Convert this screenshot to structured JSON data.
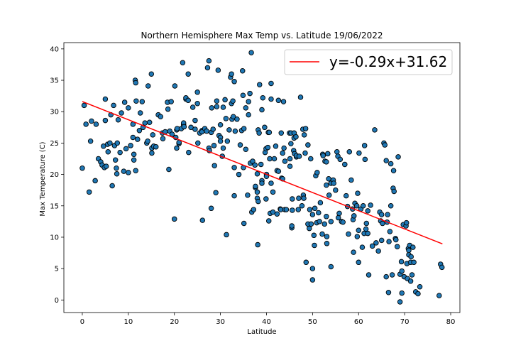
{
  "chart_data": {
    "type": "scatter",
    "title": "Northern Hemisphere Max Temp vs. Latitude 19/06/2022",
    "xlabel": "Latitude",
    "ylabel": "Max Temperature (C)",
    "xlim": [
      -4,
      82
    ],
    "ylim": [
      -2,
      41
    ],
    "xticks": [
      0,
      10,
      20,
      30,
      40,
      50,
      60,
      70,
      80
    ],
    "yticks": [
      0,
      5,
      10,
      15,
      20,
      25,
      30,
      35,
      40
    ],
    "grid": false,
    "legend_position": "top-right",
    "marker_color": "#1f77b4",
    "marker_edge": "#000000",
    "regression": {
      "label": "y=-0.29x+31.62",
      "slope": -0.29,
      "intercept": 31.62,
      "x_range": [
        0,
        78.2
      ],
      "color": "#ff0000"
    },
    "points": [
      [
        0,
        21
      ],
      [
        0.4,
        31
      ],
      [
        0.8,
        28
      ],
      [
        1.5,
        17.2
      ],
      [
        1.8,
        25.3
      ],
      [
        2,
        28.5
      ],
      [
        2.8,
        19
      ],
      [
        3,
        28
      ],
      [
        3.5,
        22.5
      ],
      [
        4,
        22
      ],
      [
        4.3,
        21.5
      ],
      [
        4.6,
        24.5
      ],
      [
        4.8,
        21.1
      ],
      [
        5,
        28.6
      ],
      [
        5,
        32
      ],
      [
        5.2,
        21.3
      ],
      [
        5.5,
        24.8
      ],
      [
        5.6,
        23.6
      ],
      [
        6,
        25
      ],
      [
        6.2,
        29.5
      ],
      [
        6.5,
        18.2
      ],
      [
        6.8,
        31
      ],
      [
        7,
        24.6
      ],
      [
        7.2,
        22.3
      ],
      [
        7.4,
        21
      ],
      [
        7.5,
        20.1
      ],
      [
        7.6,
        25
      ],
      [
        7.8,
        28.7
      ],
      [
        8.2,
        23.5
      ],
      [
        8.5,
        29.8
      ],
      [
        9,
        20.5
      ],
      [
        9.2,
        31.5
      ],
      [
        9.5,
        24.1
      ],
      [
        10,
        20.3
      ],
      [
        10,
        30.6
      ],
      [
        10.5,
        24.6
      ],
      [
        11,
        28
      ],
      [
        11,
        25.9
      ],
      [
        11.2,
        23.2
      ],
      [
        11.2,
        22.3
      ],
      [
        11.5,
        35
      ],
      [
        11.6,
        34.6
      ],
      [
        11.6,
        20.6
      ],
      [
        11.7,
        31.7
      ],
      [
        12,
        25.6
      ],
      [
        12.4,
        27
      ],
      [
        12.6,
        29.8
      ],
      [
        13,
        31.6
      ],
      [
        13.2,
        27.5
      ],
      [
        13.6,
        28.2
      ],
      [
        14,
        25
      ],
      [
        14.2,
        25.3
      ],
      [
        14.3,
        34.1
      ],
      [
        14.6,
        28.3
      ],
      [
        15,
        36
      ],
      [
        15.1,
        24.2
      ],
      [
        15.1,
        23.4
      ],
      [
        15.3,
        26.3
      ],
      [
        15.5,
        24.5
      ],
      [
        16,
        24.4
      ],
      [
        16.5,
        29.5
      ],
      [
        17,
        29.2
      ],
      [
        17.4,
        26.6
      ],
      [
        17.5,
        25.7
      ],
      [
        18,
        26.8
      ],
      [
        18.5,
        31.5
      ],
      [
        18.6,
        30.4
      ],
      [
        18.8,
        20.8
      ],
      [
        19,
        26.9
      ],
      [
        19.3,
        31.6
      ],
      [
        19.5,
        26.4
      ],
      [
        20,
        12.9
      ],
      [
        20.1,
        34.1
      ],
      [
        20.3,
        25.9
      ],
      [
        20.5,
        24.2
      ],
      [
        20.5,
        27.1
      ],
      [
        20.6,
        27.3
      ],
      [
        21,
        24.9
      ],
      [
        21,
        25.1
      ],
      [
        21.5,
        27.3
      ],
      [
        21.8,
        37.8
      ],
      [
        22,
        27.9
      ],
      [
        22,
        28.2
      ],
      [
        22.1,
        27.6
      ],
      [
        22.5,
        32
      ],
      [
        22.5,
        32.2
      ],
      [
        23,
        31.8
      ],
      [
        23,
        36
      ],
      [
        23.1,
        23.5
      ],
      [
        23.6,
        27.5
      ],
      [
        24,
        30.7
      ],
      [
        24.5,
        27.2
      ],
      [
        24.5,
        28.6
      ],
      [
        25,
        33.1
      ],
      [
        25,
        31.3
      ],
      [
        25.1,
        25
      ],
      [
        25.5,
        26.6
      ],
      [
        26,
        27
      ],
      [
        26,
        26.8
      ],
      [
        26.1,
        12.7
      ],
      [
        26.6,
        27.3
      ],
      [
        27,
        26.9
      ],
      [
        27.2,
        37
      ],
      [
        27.5,
        38.1
      ],
      [
        27.5,
        24.2
      ],
      [
        27.6,
        23.8
      ],
      [
        28,
        26.7
      ],
      [
        28,
        14.6
      ],
      [
        28.1,
        30.6
      ],
      [
        28.4,
        27.2
      ],
      [
        28.6,
        24.6
      ],
      [
        28.7,
        21.4
      ],
      [
        29,
        17.1
      ],
      [
        29.2,
        30.8
      ],
      [
        29.2,
        31.7
      ],
      [
        29.5,
        36.6
      ],
      [
        29.7,
        26.2
      ],
      [
        30,
        25.9
      ],
      [
        30,
        25.3
      ],
      [
        30,
        27.9
      ],
      [
        30.4,
        22.9
      ],
      [
        30.6,
        30.7
      ],
      [
        30.6,
        24.2
      ],
      [
        31,
        31.9
      ],
      [
        31.2,
        28.9
      ],
      [
        31.3,
        10.4
      ],
      [
        31.5,
        25.3
      ],
      [
        31.9,
        27.1
      ],
      [
        32.2,
        35.5
      ],
      [
        32.4,
        36
      ],
      [
        32.4,
        31.3
      ],
      [
        32.5,
        28.8
      ],
      [
        32.7,
        31.7
      ],
      [
        32.8,
        29.2
      ],
      [
        33,
        21.1
      ],
      [
        33,
        16.6
      ],
      [
        33,
        34.8
      ],
      [
        33.2,
        26.9
      ],
      [
        33.6,
        28.8
      ],
      [
        34,
        20
      ],
      [
        34.3,
        24.7
      ],
      [
        34.6,
        27
      ],
      [
        34.8,
        36.5
      ],
      [
        34.9,
        32.6
      ],
      [
        35.1,
        12.2
      ],
      [
        35,
        21.1
      ],
      [
        35.1,
        27.3
      ],
      [
        35.5,
        24
      ],
      [
        35.5,
        30.6
      ],
      [
        35.9,
        16.7
      ],
      [
        36.1,
        31.6
      ],
      [
        36.1,
        29.5
      ],
      [
        36.4,
        32.9
      ],
      [
        36.5,
        21.8
      ],
      [
        36.7,
        39.4
      ],
      [
        36.8,
        14
      ],
      [
        37,
        22.1
      ],
      [
        37.2,
        14.4
      ],
      [
        37.5,
        21.5
      ],
      [
        37.6,
        17.9
      ],
      [
        37.6,
        18.1
      ],
      [
        38,
        20.1
      ],
      [
        38,
        17.2
      ],
      [
        38,
        16.2
      ],
      [
        38.1,
        8.8
      ],
      [
        38.2,
        15.7
      ],
      [
        38.2,
        27.1
      ],
      [
        38.4,
        26.6
      ],
      [
        38.5,
        34.3
      ],
      [
        38.8,
        21.6
      ],
      [
        39,
        19
      ],
      [
        39,
        18.6
      ],
      [
        39,
        30.3
      ],
      [
        39.2,
        32.2
      ],
      [
        39.6,
        27.5
      ],
      [
        39.7,
        23.5
      ],
      [
        39.9,
        24.1
      ],
      [
        39.9,
        16.1
      ],
      [
        40,
        20
      ],
      [
        40,
        19.7
      ],
      [
        40.3,
        24.3
      ],
      [
        40.4,
        26.7
      ],
      [
        40.5,
        12.6
      ],
      [
        40.6,
        26.7
      ],
      [
        40.7,
        22.5
      ],
      [
        40.8,
        13.8
      ],
      [
        41,
        34.5
      ],
      [
        41,
        18.6
      ],
      [
        41,
        32
      ],
      [
        41.4,
        14
      ],
      [
        41.4,
        17.2
      ],
      [
        41.7,
        22.5
      ],
      [
        42,
        24.5
      ],
      [
        42.3,
        20.6
      ],
      [
        42.3,
        13.7
      ],
      [
        42.6,
        31.8
      ],
      [
        42.6,
        20.5
      ],
      [
        43,
        14.5
      ],
      [
        43.1,
        14.4
      ],
      [
        43.2,
        26.6
      ],
      [
        43.3,
        19.4
      ],
      [
        43.5,
        19.3
      ],
      [
        43.5,
        23.4
      ],
      [
        43.7,
        31.6
      ],
      [
        43.8,
        24.2
      ],
      [
        44,
        14.4
      ],
      [
        44,
        22.1
      ],
      [
        44.3,
        14.4
      ],
      [
        45,
        26.6
      ],
      [
        45.1,
        21.3
      ],
      [
        45.1,
        22.5
      ],
      [
        45.3,
        24.9
      ],
      [
        45.3,
        26.6
      ],
      [
        45.5,
        11.5
      ],
      [
        45.5,
        11.8
      ],
      [
        45.6,
        14.3
      ],
      [
        45.6,
        16.1
      ],
      [
        45.9,
        23.8
      ],
      [
        46,
        26.6
      ],
      [
        46,
        25.8
      ],
      [
        46.1,
        23.3
      ],
      [
        46.4,
        26
      ],
      [
        46.5,
        22.8
      ],
      [
        46.5,
        23
      ],
      [
        46.9,
        14.4
      ],
      [
        47,
        16.2
      ],
      [
        47.1,
        22.9
      ],
      [
        47.4,
        32.3
      ],
      [
        47.7,
        15
      ],
      [
        47.9,
        27.2
      ],
      [
        48,
        16.7
      ],
      [
        48.1,
        16.2
      ],
      [
        48.2,
        26.3
      ],
      [
        48.4,
        23.4
      ],
      [
        48.5,
        27.3
      ],
      [
        48.6,
        6
      ],
      [
        49,
        12.1
      ],
      [
        49,
        24.7
      ],
      [
        49.3,
        11.4
      ],
      [
        49.4,
        14.4
      ],
      [
        49.6,
        22.5
      ],
      [
        49.7,
        12.1
      ],
      [
        50,
        3.2
      ],
      [
        50,
        5
      ],
      [
        50,
        13.6
      ],
      [
        50.3,
        10.3
      ],
      [
        50.4,
        8.7
      ],
      [
        50.5,
        14.6
      ],
      [
        50.7,
        19.8
      ],
      [
        50.9,
        12.3
      ],
      [
        51,
        20.3
      ],
      [
        51.3,
        13.9
      ],
      [
        51.5,
        12.5
      ],
      [
        51.7,
        15.5
      ],
      [
        52.1,
        10.5
      ],
      [
        52.2,
        23.2
      ],
      [
        52.3,
        23
      ],
      [
        52.6,
        12.1
      ],
      [
        52.7,
        22.1
      ],
      [
        53,
        22
      ],
      [
        53,
        18.3
      ],
      [
        53,
        13.3
      ],
      [
        53.1,
        10.1
      ],
      [
        53.1,
        9
      ],
      [
        53.3,
        23.3
      ],
      [
        53.5,
        19.3
      ],
      [
        53.6,
        16.7
      ],
      [
        54,
        12.5
      ],
      [
        54,
        5.3
      ],
      [
        54,
        18.6
      ],
      [
        54.5,
        19.1
      ],
      [
        54.6,
        18.6
      ],
      [
        55,
        17.5
      ],
      [
        55.3,
        23.6
      ],
      [
        55.5,
        22.9
      ],
      [
        55.6,
        13.1
      ],
      [
        55.8,
        13.8
      ],
      [
        56,
        22.4
      ],
      [
        56.3,
        12.5
      ],
      [
        56.6,
        12.4
      ],
      [
        57,
        21.6
      ],
      [
        57.3,
        16.6
      ],
      [
        57.6,
        14.9
      ],
      [
        57.8,
        10.5
      ],
      [
        58,
        23.6
      ],
      [
        58.4,
        19.1
      ],
      [
        58.7,
        14.5
      ],
      [
        58.8,
        12.8
      ],
      [
        58.9,
        7.6
      ],
      [
        59,
        13.4
      ],
      [
        59.2,
        15.4
      ],
      [
        59.6,
        15
      ],
      [
        59.7,
        10.1
      ],
      [
        59.8,
        17
      ],
      [
        60,
        11.1
      ],
      [
        60,
        6
      ],
      [
        60.1,
        23.4
      ],
      [
        60.5,
        14.5
      ],
      [
        60.8,
        8.4
      ],
      [
        61,
        15
      ],
      [
        61.2,
        10.6
      ],
      [
        61.3,
        24.6
      ],
      [
        61.4,
        22.4
      ],
      [
        61.6,
        11.3
      ],
      [
        61.7,
        12.2
      ],
      [
        62,
        10.6
      ],
      [
        62,
        14.2
      ],
      [
        62.2,
        4
      ],
      [
        62.6,
        15.1
      ],
      [
        63,
        8.6
      ],
      [
        63.5,
        27.1
      ],
      [
        63.8,
        9.1
      ],
      [
        64.3,
        7.8
      ],
      [
        64.6,
        14
      ],
      [
        64.8,
        12.6
      ],
      [
        65,
        13.6
      ],
      [
        65,
        9.5
      ],
      [
        65.2,
        12.2
      ],
      [
        65.5,
        25
      ],
      [
        65.7,
        24.7
      ],
      [
        66,
        3.7
      ],
      [
        66,
        22.2
      ],
      [
        66.2,
        12.4
      ],
      [
        66.3,
        13.6
      ],
      [
        66.5,
        1.2
      ],
      [
        66.6,
        9.3
      ],
      [
        66.8,
        10.9
      ],
      [
        67,
        15
      ],
      [
        67,
        21.7
      ],
      [
        67.3,
        4
      ],
      [
        67.5,
        17.8
      ],
      [
        67.6,
        20.6
      ],
      [
        67.7,
        17.3
      ],
      [
        68,
        9.8
      ],
      [
        68.1,
        9.6
      ],
      [
        68.4,
        8.5
      ],
      [
        68.6,
        22.8
      ],
      [
        69,
        4.1
      ],
      [
        69,
        -0.3
      ],
      [
        69.3,
        6.1
      ],
      [
        69.4,
        1.1
      ],
      [
        69.4,
        4.6
      ],
      [
        69.7,
        12
      ],
      [
        69.9,
        3.7
      ],
      [
        70.3,
        11.8
      ],
      [
        70.4,
        12.3
      ],
      [
        70.5,
        5.8
      ],
      [
        70.6,
        3.4
      ],
      [
        70.8,
        8.2
      ],
      [
        70.9,
        7.2
      ],
      [
        70.9,
        7.9
      ],
      [
        71.1,
        8.7
      ],
      [
        71.3,
        3
      ],
      [
        71.3,
        6
      ],
      [
        71.4,
        6.9
      ],
      [
        71.6,
        4
      ],
      [
        71.8,
        8.4
      ],
      [
        72,
        6
      ],
      [
        72.4,
        1.3
      ],
      [
        72.9,
        1
      ],
      [
        73.3,
        2.1
      ],
      [
        77.5,
        0.7
      ],
      [
        77.8,
        5.7
      ],
      [
        78.1,
        5.2
      ]
    ]
  }
}
